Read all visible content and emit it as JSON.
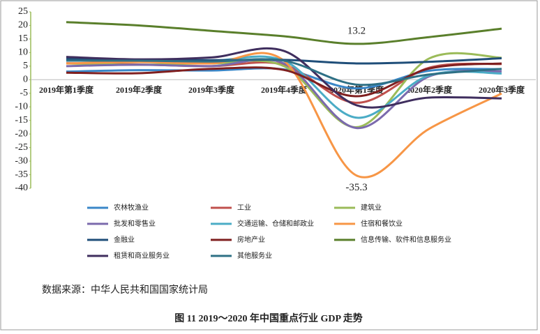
{
  "chart_data": {
    "type": "line",
    "categories": [
      "2019年第1季度",
      "2019年2季度",
      "2019年3季度",
      "2019年4季度",
      "2020年第1季度",
      "2020年2季度",
      "2020年3季度"
    ],
    "ylim": [
      -40,
      25
    ],
    "yticks": [
      -40,
      -35,
      -30,
      -25,
      -20,
      -15,
      -10,
      -5,
      0,
      5,
      10,
      15,
      20,
      25
    ],
    "series": [
      {
        "name": "农林牧渔业",
        "color": "#3a87c8",
        "values": [
          3.0,
          3.5,
          3.4,
          3.8,
          -3.2,
          3.3,
          3.9
        ]
      },
      {
        "name": "工业",
        "color": "#c0504d",
        "values": [
          6.1,
          5.6,
          5.0,
          5.5,
          -8.5,
          4.4,
          5.8
        ]
      },
      {
        "name": "建筑业",
        "color": "#9bbb59",
        "values": [
          6.0,
          5.5,
          6.0,
          5.0,
          -17.5,
          7.8,
          8.1
        ]
      },
      {
        "name": "批发和零售业",
        "color": "#7b6aad",
        "values": [
          5.0,
          5.5,
          5.0,
          6.0,
          -17.8,
          1.2,
          3.1
        ]
      },
      {
        "name": "交通运输、仓储和邮政业",
        "color": "#4bacc6",
        "values": [
          7.0,
          7.0,
          7.0,
          7.0,
          -14.0,
          1.6,
          2.3
        ]
      },
      {
        "name": "住宿和餐饮业",
        "color": "#f79646",
        "values": [
          6.0,
          6.5,
          6.0,
          7.0,
          -35.3,
          -18.1,
          -5.1
        ]
      },
      {
        "name": "金融业",
        "color": "#1f4e79",
        "values": [
          7.8,
          7.3,
          7.2,
          7.3,
          6.0,
          6.6,
          7.9
        ]
      },
      {
        "name": "房地产业",
        "color": "#7f1f1f",
        "values": [
          2.6,
          2.4,
          4.0,
          3.6,
          -6.1,
          4.1,
          6.0
        ]
      },
      {
        "name": "信息传输、软件和信息服务业",
        "color": "#5a7f2b",
        "values": [
          21.2,
          20.0,
          18.0,
          16.0,
          13.2,
          15.7,
          18.8
        ]
      },
      {
        "name": "租赁和商业服务业",
        "color": "#3f2e5e",
        "values": [
          8.4,
          7.5,
          8.2,
          10.6,
          -9.4,
          -6.6,
          -6.9
        ]
      },
      {
        "name": "其他服务业",
        "color": "#2e7085",
        "values": [
          7.0,
          7.0,
          6.7,
          7.0,
          -1.8,
          1.9,
          4.0
        ]
      }
    ],
    "data_labels": [
      {
        "series": 8,
        "index": 4
      },
      {
        "series": 5,
        "index": 4
      }
    ],
    "source": "数据来源：中华人民共和国国家统计局",
    "caption": "图 11    2019～2020 年中国重点行业 GDP 走势"
  }
}
